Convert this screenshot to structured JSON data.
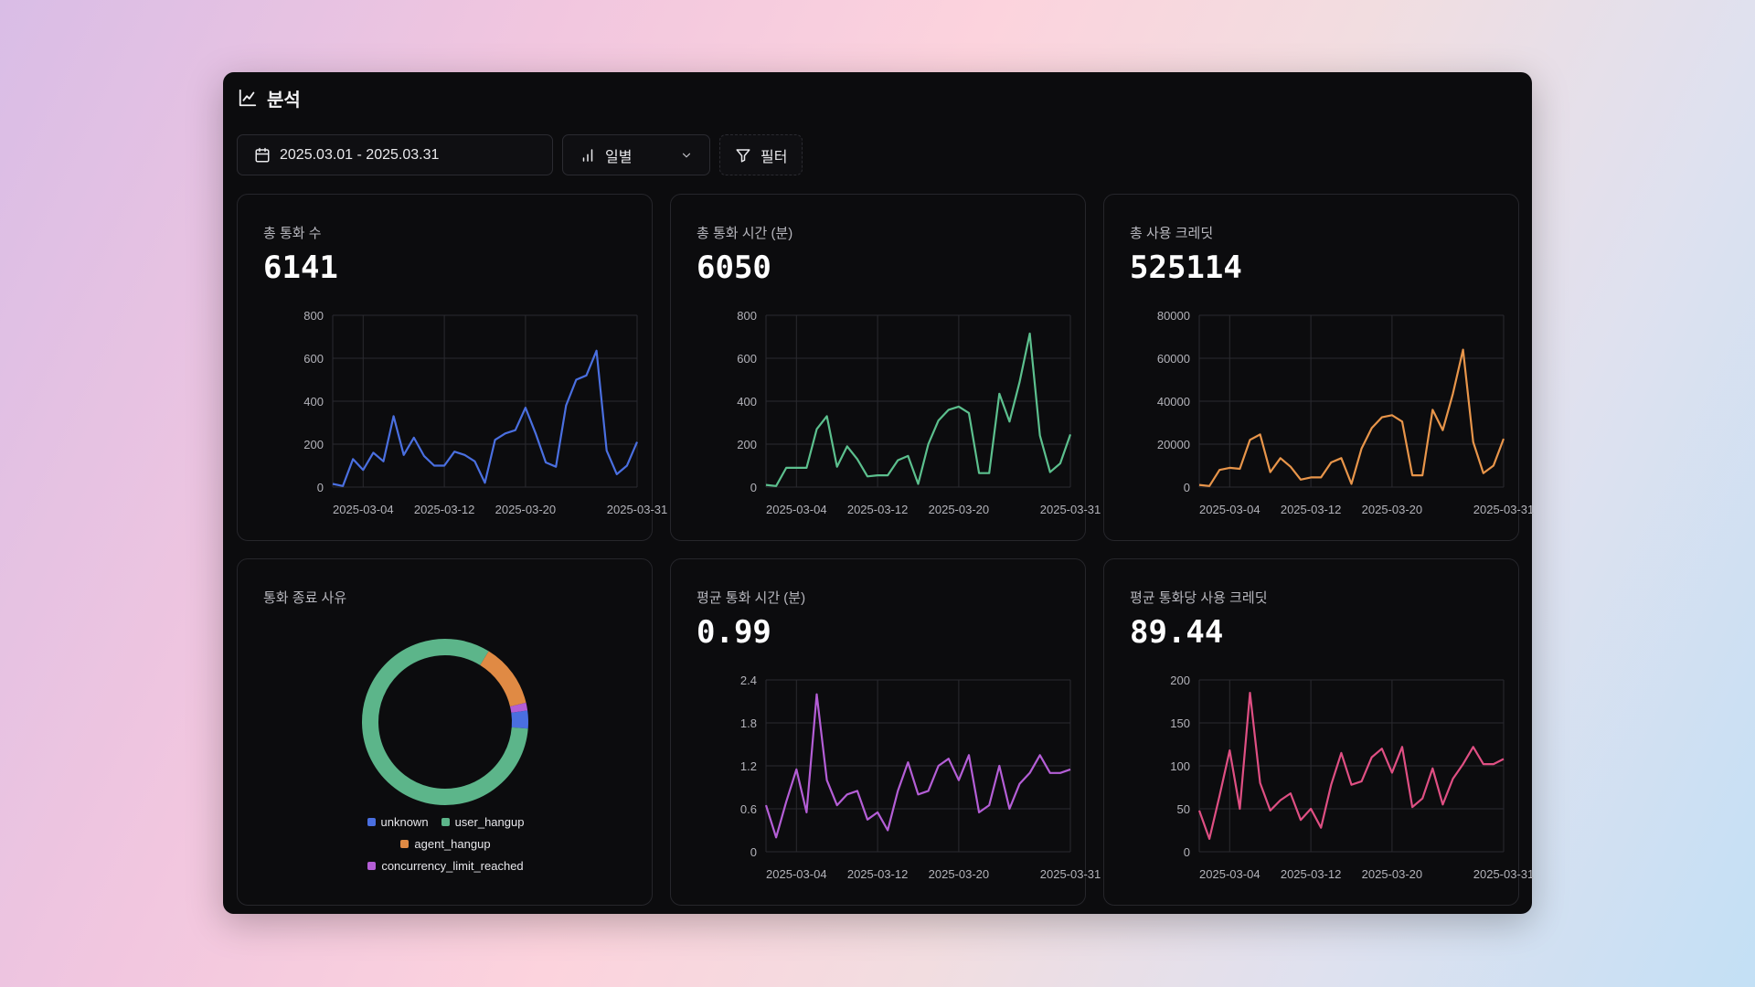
{
  "header": {
    "title": "분석",
    "icon": "line-chart-icon"
  },
  "toolbar": {
    "date_range": "2025.03.01 - 2025.03.31",
    "interval": "일별",
    "filter_label": "필터"
  },
  "cards": [
    {
      "label": "총 통화 수",
      "value": "6141",
      "color": "#4a6fe0"
    },
    {
      "label": "총 통화 시간 (분)",
      "value": "6050",
      "color": "#5cc08e"
    },
    {
      "label": "총 사용 크레딧",
      "value": "525114",
      "color": "#e8954a"
    },
    {
      "label": "통화 종료 사유",
      "value": ""
    },
    {
      "label": "평균 통화 시간 (분)",
      "value": "0.99",
      "color": "#b45ed6"
    },
    {
      "label": "평균 통화당 사용 크레딧",
      "value": "89.44",
      "color": "#df4f83"
    }
  ],
  "chart_data": [
    {
      "type": "line",
      "title": "총 통화 수",
      "x_ticks": [
        "2025-03-04",
        "2025-03-12",
        "2025-03-20",
        "2025-03-31"
      ],
      "y_ticks": [
        "0",
        "200",
        "400",
        "600",
        "800"
      ],
      "ylim": [
        0,
        800
      ],
      "values": [
        15,
        5,
        130,
        80,
        160,
        120,
        330,
        150,
        230,
        145,
        100,
        100,
        165,
        150,
        120,
        20,
        220,
        250,
        265,
        370,
        250,
        115,
        95,
        380,
        500,
        520,
        635,
        170,
        60,
        100,
        210
      ]
    },
    {
      "type": "line",
      "title": "총 통화 시간 (분)",
      "x_ticks": [
        "2025-03-04",
        "2025-03-12",
        "2025-03-20",
        "2025-03-31"
      ],
      "y_ticks": [
        "0",
        "200",
        "400",
        "600",
        "800"
      ],
      "ylim": [
        0,
        800
      ],
      "values": [
        10,
        5,
        90,
        90,
        90,
        270,
        330,
        95,
        190,
        130,
        50,
        55,
        55,
        125,
        145,
        15,
        200,
        310,
        360,
        375,
        345,
        65,
        65,
        435,
        305,
        490,
        715,
        240,
        70,
        110,
        245
      ]
    },
    {
      "type": "line",
      "title": "총 사용 크레딧",
      "x_ticks": [
        "2025-03-04",
        "2025-03-12",
        "2025-03-20",
        "2025-03-31"
      ],
      "y_ticks": [
        "0",
        "20000",
        "40000",
        "60000",
        "80000"
      ],
      "ylim": [
        0,
        80000
      ],
      "values": [
        1000,
        500,
        8000,
        9000,
        8500,
        22000,
        24500,
        7000,
        13500,
        9500,
        3500,
        4500,
        4500,
        11500,
        13500,
        1500,
        18000,
        27500,
        32500,
        33500,
        30500,
        5500,
        5500,
        36000,
        26500,
        43500,
        64000,
        21000,
        6500,
        10000,
        22500
      ]
    },
    {
      "type": "pie",
      "title": "통화 종료 사유",
      "labels": [
        "unknown",
        "user_hangup",
        "agent_hangup",
        "concurrency_limit_reached"
      ],
      "values": [
        3.5,
        82.5,
        12.5,
        1.5
      ],
      "colors": [
        "#4a6fe0",
        "#5cb58a",
        "#e08a44",
        "#b45ed6"
      ]
    },
    {
      "type": "line",
      "title": "평균 통화 시간 (분)",
      "x_ticks": [
        "2025-03-04",
        "2025-03-12",
        "2025-03-20",
        "2025-03-31"
      ],
      "y_ticks": [
        "0",
        "0.6",
        "1.2",
        "1.8",
        "2.4"
      ],
      "ylim": [
        0,
        2.4
      ],
      "values": [
        0.65,
        0.2,
        0.7,
        1.15,
        0.55,
        2.2,
        1.0,
        0.65,
        0.8,
        0.85,
        0.45,
        0.55,
        0.3,
        0.85,
        1.25,
        0.8,
        0.85,
        1.2,
        1.3,
        1.0,
        1.35,
        0.55,
        0.65,
        1.2,
        0.6,
        0.95,
        1.1,
        1.35,
        1.1,
        1.1,
        1.15
      ]
    },
    {
      "type": "line",
      "title": "평균 통화당 사용 크레딧",
      "x_ticks": [
        "2025-03-04",
        "2025-03-12",
        "2025-03-20",
        "2025-03-31"
      ],
      "y_ticks": [
        "0",
        "50",
        "100",
        "150",
        "200"
      ],
      "ylim": [
        0,
        200
      ],
      "values": [
        48,
        15,
        65,
        118,
        50,
        185,
        80,
        48,
        60,
        68,
        37,
        50,
        28,
        78,
        115,
        78,
        82,
        110,
        120,
        92,
        122,
        52,
        62,
        97,
        55,
        85,
        102,
        122,
        102,
        102,
        108
      ]
    }
  ]
}
